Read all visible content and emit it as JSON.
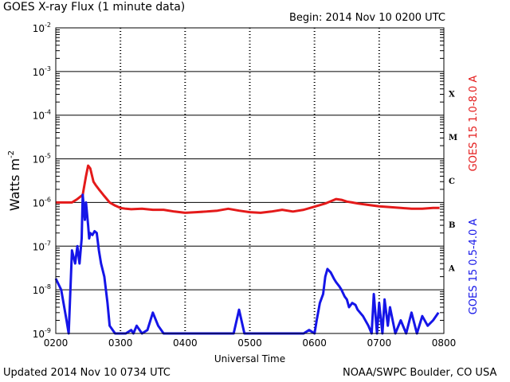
{
  "header": {
    "title": "GOES X-ray Flux (1 minute data)",
    "begin": "Begin: 2014 Nov 10 0200 UTC"
  },
  "footer": {
    "updated": "Updated 2014 Nov 10 0734 UTC",
    "credit": "NOAA/SWPC Boulder, CO USA"
  },
  "colors": {
    "long": "#e41a1a",
    "short": "#1515e8",
    "grid": "#000000"
  },
  "chart_data": {
    "type": "line",
    "title": "GOES X-ray Flux (1 minute data)",
    "xlabel": "Universal Time",
    "ylabel": "Watts m",
    "ylabel_sup": "-2",
    "xlim": [
      0,
      360
    ],
    "ylim_log10": [
      -9,
      -2
    ],
    "y_scale": "log",
    "grid": true,
    "x_ticks": [
      "0200",
      "0300",
      "0400",
      "0500",
      "0600",
      "0700",
      "0800"
    ],
    "y_ticks": [
      {
        "base": "10",
        "exp": "-9"
      },
      {
        "base": "10",
        "exp": "-8"
      },
      {
        "base": "10",
        "exp": "-7"
      },
      {
        "base": "10",
        "exp": "-6"
      },
      {
        "base": "10",
        "exp": "-5"
      },
      {
        "base": "10",
        "exp": "-4"
      },
      {
        "base": "10",
        "exp": "-3"
      },
      {
        "base": "10",
        "exp": "-2"
      }
    ],
    "flare_classes": [
      "A",
      "B",
      "C",
      "M",
      "X"
    ],
    "series": [
      {
        "name": "GOES 15 1.0-8.0 A",
        "color": "#e41a1a",
        "x": [
          0,
          15,
          20,
          25,
          28,
          30,
          32,
          35,
          37,
          40,
          45,
          50,
          55,
          60,
          65,
          70,
          80,
          90,
          100,
          110,
          120,
          130,
          140,
          150,
          160,
          170,
          180,
          190,
          200,
          210,
          220,
          230,
          240,
          250,
          260,
          265,
          270,
          275,
          280,
          290,
          300,
          310,
          320,
          330,
          340,
          350,
          356
        ],
        "y": [
          1e-06,
          1e-06,
          1.2e-06,
          1.5e-06,
          4e-06,
          7e-06,
          6e-06,
          3e-06,
          2.5e-06,
          2e-06,
          1.4e-06,
          1e-06,
          8.5e-07,
          7.5e-07,
          7.2e-07,
          7e-07,
          7.2e-07,
          6.8e-07,
          6.8e-07,
          6.2e-07,
          5.8e-07,
          6e-07,
          6.2e-07,
          6.5e-07,
          7.2e-07,
          6.5e-07,
          6e-07,
          5.8e-07,
          6.2e-07,
          6.8e-07,
          6.2e-07,
          6.8e-07,
          8e-07,
          9.5e-07,
          1.2e-06,
          1.15e-06,
          1.05e-06,
          1e-06,
          9.5e-07,
          8.8e-07,
          8.2e-07,
          7.8e-07,
          7.5e-07,
          7.2e-07,
          7.2e-07,
          7.5e-07,
          7.5e-07
        ]
      },
      {
        "name": "GOES 15 0.5-4.0 A",
        "color": "#1515e8",
        "x": [
          0,
          5,
          10,
          12,
          15,
          18,
          20,
          22,
          24,
          25,
          27,
          28,
          30,
          31,
          32,
          34,
          36,
          38,
          40,
          42,
          45,
          48,
          50,
          55,
          60,
          65,
          70,
          72,
          75,
          80,
          85,
          90,
          95,
          100,
          105,
          108,
          110,
          115,
          120,
          125,
          130,
          135,
          140,
          145,
          150,
          155,
          160,
          165,
          170,
          175,
          180,
          185,
          190,
          195,
          200,
          205,
          210,
          215,
          220,
          225,
          230,
          235,
          240,
          242,
          245,
          248,
          250,
          252,
          255,
          258,
          260,
          263,
          265,
          268,
          270,
          272,
          275,
          278,
          280,
          285,
          290,
          293,
          295,
          298,
          300,
          303,
          305,
          308,
          310,
          315,
          320,
          325,
          330,
          335,
          340,
          345,
          350,
          355
        ],
        "y": [
          1.8e-08,
          1e-08,
          2e-09,
          1e-09,
          8e-08,
          4e-08,
          1e-07,
          4e-08,
          1.5e-07,
          1.5e-06,
          4e-07,
          1e-06,
          3e-07,
          1.5e-07,
          2e-07,
          1.8e-07,
          2.2e-07,
          2e-07,
          8e-08,
          4e-08,
          2e-08,
          5e-09,
          1.5e-09,
          1e-09,
          1e-09,
          1e-09,
          1.2e-09,
          1e-09,
          1.5e-09,
          1e-09,
          1.2e-09,
          3e-09,
          1.5e-09,
          1e-09,
          1e-09,
          1e-09,
          1e-09,
          1e-09,
          1e-09,
          1e-09,
          1e-09,
          1e-09,
          1e-09,
          1e-09,
          1e-09,
          1e-09,
          1e-09,
          1e-09,
          3.5e-09,
          1e-09,
          1e-09,
          1e-09,
          1e-09,
          1e-09,
          1e-09,
          1e-09,
          1e-09,
          1e-09,
          1e-09,
          1e-09,
          1e-09,
          1.2e-09,
          1e-09,
          2e-09,
          5e-09,
          8e-09,
          2e-08,
          3e-08,
          2.5e-08,
          1.8e-08,
          1.5e-08,
          1.2e-08,
          1e-08,
          7e-09,
          6e-09,
          4e-09,
          5e-09,
          4.5e-09,
          3.5e-09,
          2.5e-09,
          1.5e-09,
          1e-09,
          8e-09,
          1e-09,
          5e-09,
          1e-09,
          6e-09,
          1.5e-09,
          4e-09,
          1e-09,
          2e-09,
          1e-09,
          3e-09,
          1e-09,
          2.5e-09,
          1.5e-09,
          2e-09,
          3e-09
        ]
      }
    ]
  }
}
